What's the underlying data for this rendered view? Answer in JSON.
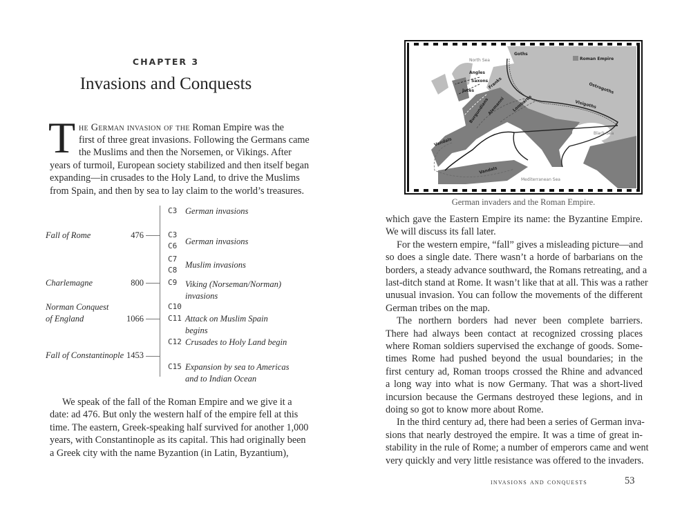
{
  "left_page": {
    "chapter_label": "CHAPTER 3",
    "chapter_title": "Invasions and Conquests",
    "drop_cap": "T",
    "intro_smallcaps": "he German invasion of the",
    "intro_lines": [
      " Roman Empire was the",
      "first of three great invasions. Following the Germans came",
      "the Muslims and then the Norsemen, or Vikings. After",
      "years of turmoil, European society stabilized and then itself began",
      "expanding—in crusades to the Holy Land, to drive the Muslims",
      "from Spain, and then by sea to lay claim to the world’s treasures."
    ],
    "timeline": {
      "events": [
        {
          "label": "Fall of Rome",
          "year": "476"
        },
        {
          "label": "Charlemagne",
          "year": "800"
        },
        {
          "label": "Norman Conquest",
          "label2": "of England",
          "year": "1066"
        },
        {
          "label": "Fall of Constantinople",
          "year": "1453"
        }
      ],
      "centuries": [
        "C3",
        "C3",
        "C6",
        "C7",
        "C8",
        "C9",
        "C10",
        "C11",
        "C12",
        "C15"
      ],
      "descriptions": [
        "German invasions",
        "German invasions",
        "Muslim invasions",
        "Viking (Norseman/Norman)",
        "invasions",
        "Attack on Muslim Spain",
        "begins",
        "Crusades to Holy Land begin",
        "Expansion by sea to Americas",
        "and to Indian Ocean"
      ]
    },
    "body_lines": [
      "We speak of the fall of the Roman Empire and we give it a",
      "date: ad 476. But only the western half of the empire fell at this",
      "time. The eastern, Greek-speaking half survived for another 1,000",
      "years, with Constantinople as its capital. This had originally been",
      "a Greek city with the name Byzantion (in Latin, Byzantium),"
    ]
  },
  "right_page": {
    "map": {
      "legend_label": "Roman Empire",
      "legend_color": "#8a8a8a",
      "seas": [
        "North Sea",
        "Black Sea",
        "Mediterranean Sea"
      ],
      "tribes": [
        "Goths",
        "Angles",
        "Saxons",
        "Jutes",
        "Franks",
        "Ostrogoths",
        "Visigoths",
        "Lombards",
        "Alemanni",
        "Burgundians",
        "Vandals",
        "Vandals"
      ],
      "caption": "German invaders and the Roman Empire."
    },
    "body_lines": [
      {
        "t": "which gave the Eastern Empire its name: the Byzantine Empire.",
        "indent": false,
        "last": false
      },
      {
        "t": "We will discuss its fall later.",
        "indent": false,
        "last": true
      },
      {
        "t": "For the western empire, “fall” gives a misleading picture—and",
        "indent": true,
        "last": false
      },
      {
        "t": "so does a single date. There wasn’t a horde of barbarians on the",
        "indent": false,
        "last": false
      },
      {
        "t": "borders, a steady advance southward, the Romans retreating, and a",
        "indent": false,
        "last": false
      },
      {
        "t": "last-ditch stand at Rome. It wasn’t like that at all. This was a rather",
        "indent": false,
        "last": false
      },
      {
        "t": "unusual invasion. You can follow the movements of the different",
        "indent": false,
        "last": false
      },
      {
        "t": "German tribes on the map.",
        "indent": false,
        "last": true
      },
      {
        "t": "The northern borders had never been complete barriers.",
        "indent": true,
        "last": false
      },
      {
        "t": "There had always been contact at recognized crossing places",
        "indent": false,
        "last": false
      },
      {
        "t": "where Roman soldiers supervised the exchange of goods. Some-",
        "indent": false,
        "last": false
      },
      {
        "t": "times Rome had pushed beyond the usual boundaries; in the",
        "indent": false,
        "last": false
      },
      {
        "t": "first century ad, Roman troops crossed the Rhine and advanced",
        "indent": false,
        "last": false
      },
      {
        "t": "a long way into what is now Germany. That was a short-lived",
        "indent": false,
        "last": false
      },
      {
        "t": "incursion because the Germans destroyed these legions, and in",
        "indent": false,
        "last": false
      },
      {
        "t": "doing so got to know more about Rome.",
        "indent": false,
        "last": true
      },
      {
        "t": "In the third century ad, there had been a series of German inva-",
        "indent": true,
        "last": false
      },
      {
        "t": "sions that nearly destroyed the empire. It was a time of great in-",
        "indent": false,
        "last": false
      },
      {
        "t": "stability in the rule of Rome; a number of emperors came and went",
        "indent": false,
        "last": false
      },
      {
        "t": "very quickly and very little resistance was offered to the invaders.",
        "indent": false,
        "last": false
      }
    ],
    "running_head": "invasions and conquests",
    "page_number": "53"
  }
}
